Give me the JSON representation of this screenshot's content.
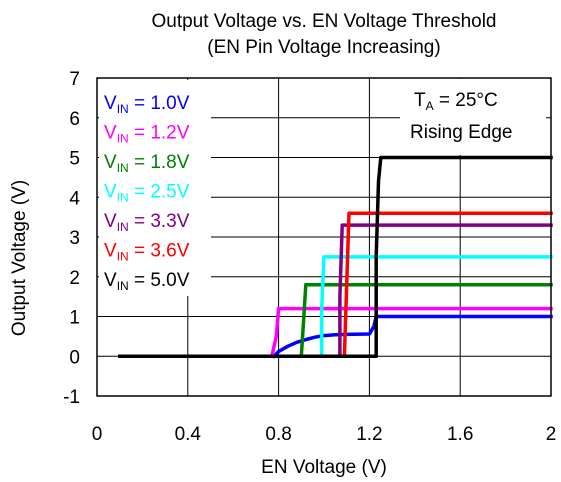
{
  "chart_data": {
    "type": "line",
    "title": "Output Voltage vs. EN Voltage Threshold",
    "subtitle": "(EN Pin Voltage Increasing)",
    "xlabel": "EN Voltage (V)",
    "ylabel": "Output Voltage (V)",
    "xlim": [
      0,
      2
    ],
    "ylim": [
      -1,
      7
    ],
    "xticks": [
      0,
      0.4,
      0.8,
      1.2,
      1.6,
      2
    ],
    "xtick_labels": [
      "0",
      "0.4",
      "0.8",
      "1.2",
      "1.6",
      "2"
    ],
    "yticks": [
      -1,
      0,
      1,
      2,
      3,
      4,
      5,
      6,
      7
    ],
    "ytick_labels": [
      "-1",
      "0",
      "1",
      "2",
      "3",
      "4",
      "5",
      "6",
      "7"
    ],
    "grid": true,
    "legend_position": "top-left",
    "annotation": {
      "line1_main": "T",
      "line1_sub": "A",
      "line1_rest": " = 25°C",
      "line2": "Rising Edge"
    },
    "series": [
      {
        "name": "VIN = 1.0V",
        "label_main": "V",
        "label_sub": "IN",
        "label_rest": " = 1.0V",
        "color": "#0000ff",
        "points": [
          [
            0.78,
            0
          ],
          [
            0.8,
            0.12
          ],
          [
            0.84,
            0.25
          ],
          [
            0.88,
            0.35
          ],
          [
            0.92,
            0.42
          ],
          [
            0.96,
            0.48
          ],
          [
            1.0,
            0.52
          ],
          [
            1.05,
            0.54
          ],
          [
            1.1,
            0.55
          ],
          [
            1.2,
            0.56
          ],
          [
            1.22,
            0.75
          ],
          [
            1.23,
            1.0
          ],
          [
            2.0,
            1.0
          ]
        ]
      },
      {
        "name": "VIN = 1.2V",
        "label_main": "V",
        "label_sub": "IN",
        "label_rest": " = 1.2V",
        "color": "#ff00ff",
        "points": [
          [
            0.77,
            0
          ],
          [
            0.79,
            0.5
          ],
          [
            0.8,
            1.2
          ],
          [
            2.0,
            1.2
          ]
        ]
      },
      {
        "name": "VIN = 1.8V",
        "label_main": "V",
        "label_sub": "IN",
        "label_rest": " = 1.8V",
        "color": "#008000",
        "points": [
          [
            0.9,
            0
          ],
          [
            0.91,
            0.9
          ],
          [
            0.92,
            1.8
          ],
          [
            2.0,
            1.8
          ]
        ]
      },
      {
        "name": "VIN = 2.5V",
        "label_main": "V",
        "label_sub": "IN",
        "label_rest": " = 2.5V",
        "color": "#00ffff",
        "points": [
          [
            0.99,
            0
          ],
          [
            0.99,
            1.2
          ],
          [
            1.0,
            2.5
          ],
          [
            2.0,
            2.5
          ]
        ]
      },
      {
        "name": "VIN = 3.3V",
        "label_main": "V",
        "label_sub": "IN",
        "label_rest": " = 3.3V",
        "color": "#800080",
        "points": [
          [
            1.07,
            0
          ],
          [
            1.07,
            1.5
          ],
          [
            1.08,
            3.3
          ],
          [
            2.0,
            3.3
          ]
        ]
      },
      {
        "name": "VIN = 3.6V",
        "label_main": "V",
        "label_sub": "IN",
        "label_rest": " = 3.6V",
        "color": "#ff0000",
        "points": [
          [
            1.09,
            0
          ],
          [
            1.1,
            1.8
          ],
          [
            1.11,
            3.6
          ],
          [
            2.0,
            3.6
          ]
        ]
      },
      {
        "name": "VIN = 5.0V",
        "label_main": "V",
        "label_sub": "IN",
        "label_rest": " = 5.0V",
        "color": "#000000",
        "points": [
          [
            0.1,
            0
          ],
          [
            1.23,
            0
          ],
          [
            1.23,
            2.5
          ],
          [
            1.24,
            4.4
          ],
          [
            1.25,
            5.0
          ],
          [
            2.0,
            5.0
          ]
        ]
      }
    ]
  }
}
